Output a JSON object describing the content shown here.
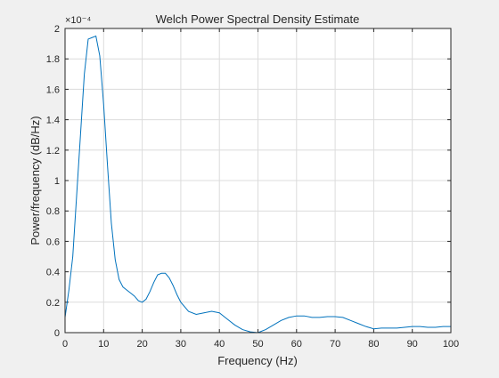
{
  "chart_data": {
    "type": "line",
    "title": "Welch Power Spectral Density Estimate",
    "xlabel": "Frequency (Hz)",
    "ylabel": "Power/frequency (dB/Hz)",
    "exponent_label": "×10⁻⁴",
    "xlim": [
      0,
      100
    ],
    "ylim": [
      0,
      2
    ],
    "xticks": [
      0,
      10,
      20,
      30,
      40,
      50,
      60,
      70,
      80,
      90,
      100
    ],
    "yticks": [
      0,
      0.2,
      0.4,
      0.6,
      0.8,
      1,
      1.2,
      1.4,
      1.6,
      1.8,
      2
    ],
    "ytick_labels": [
      "0",
      "0.2",
      "0.4",
      "0.6",
      "0.8",
      "1",
      "1.2",
      "1.4",
      "1.6",
      "1.8",
      "2"
    ],
    "grid": true,
    "line_color": "#0072BD",
    "series": [
      {
        "x": [
          0,
          1,
          2,
          3,
          4,
          5,
          6,
          7,
          8,
          9,
          10,
          11,
          12,
          13,
          14,
          15,
          16,
          17,
          18,
          19,
          20,
          21,
          22,
          23,
          24,
          25,
          26,
          27,
          28,
          29,
          30,
          32,
          34,
          36,
          38,
          40,
          42,
          44,
          46,
          48,
          50,
          52,
          54,
          56,
          58,
          60,
          62,
          64,
          66,
          68,
          70,
          72,
          74,
          76,
          78,
          80,
          82,
          84,
          86,
          88,
          90,
          92,
          94,
          96,
          98,
          100
        ],
        "y": [
          0.1,
          0.28,
          0.5,
          0.9,
          1.3,
          1.7,
          1.93,
          1.94,
          1.95,
          1.82,
          1.5,
          1.1,
          0.72,
          0.48,
          0.35,
          0.3,
          0.28,
          0.26,
          0.24,
          0.21,
          0.2,
          0.22,
          0.27,
          0.33,
          0.38,
          0.39,
          0.39,
          0.36,
          0.31,
          0.25,
          0.2,
          0.14,
          0.12,
          0.13,
          0.14,
          0.13,
          0.09,
          0.05,
          0.02,
          0.005,
          0.0,
          0.02,
          0.05,
          0.08,
          0.1,
          0.11,
          0.11,
          0.1,
          0.1,
          0.105,
          0.105,
          0.1,
          0.08,
          0.06,
          0.04,
          0.025,
          0.03,
          0.03,
          0.03,
          0.035,
          0.04,
          0.04,
          0.035,
          0.035,
          0.04,
          0.04
        ]
      }
    ]
  }
}
